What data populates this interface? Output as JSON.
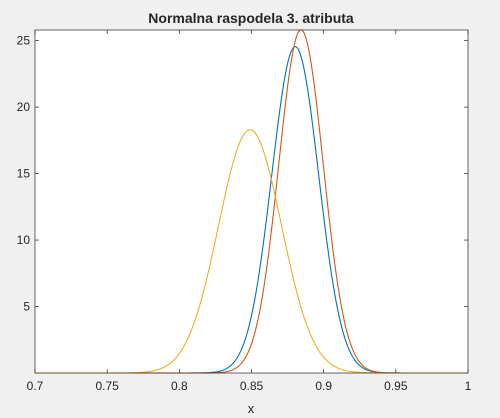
{
  "chart_data": {
    "type": "line",
    "title": "Normalna raspodela 3. atributa",
    "xlabel": "x",
    "ylabel": "",
    "xlim": [
      0.7,
      1.0
    ],
    "ylim": [
      0,
      25.8
    ],
    "xticks": [
      "0.7",
      "0.75",
      "0.8",
      "0.85",
      "0.9",
      "0.95",
      "1"
    ],
    "xtick_values": [
      0.7,
      0.75,
      0.8,
      0.85,
      0.9,
      0.95,
      1.0
    ],
    "yticks": [
      "5",
      "10",
      "15",
      "20",
      "25"
    ],
    "ytick_values": [
      5,
      10,
      15,
      20,
      25
    ],
    "grid": false,
    "legend": false,
    "series": [
      {
        "color": "#0072BD",
        "distribution": "normal",
        "mean": 0.8803,
        "std": 0.01625,
        "peak": 24.55
      },
      {
        "color": "#D95319",
        "distribution": "normal",
        "mean": 0.8843,
        "std": 0.01545,
        "peak": 25.82
      },
      {
        "color": "#EDB120",
        "distribution": "normal",
        "mean": 0.849,
        "std": 0.0218,
        "peak": 18.3
      }
    ]
  }
}
